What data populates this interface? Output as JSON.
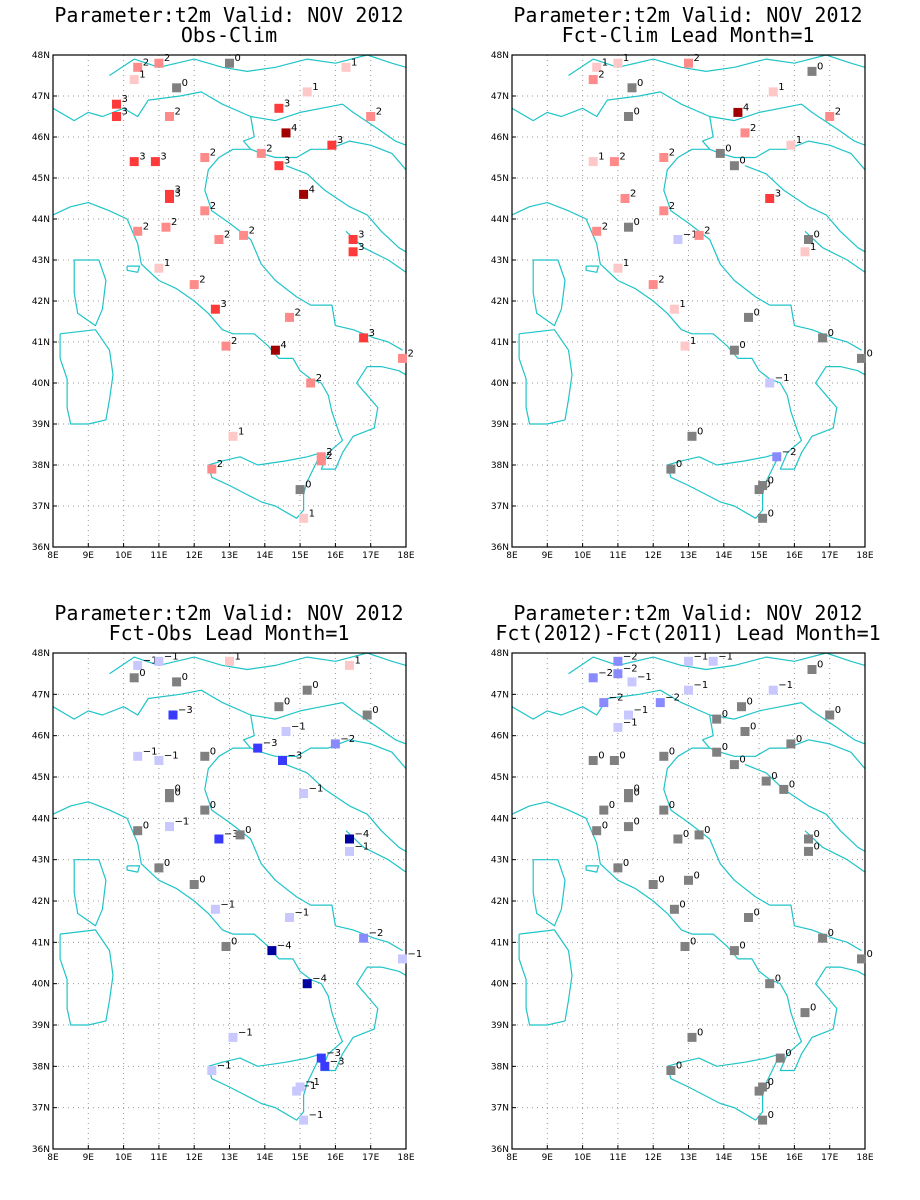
{
  "lat_ticks": [
    "48N",
    "47N",
    "46N",
    "45N",
    "44N",
    "43N",
    "42N",
    "41N",
    "40N",
    "39N",
    "38N",
    "37N",
    "36N"
  ],
  "lon_ticks": [
    "8E",
    "9E",
    "10E",
    "11E",
    "12E",
    "13E",
    "14E",
    "15E",
    "16E",
    "17E",
    "18E"
  ],
  "colors": {
    "coast": "#1fc4c8",
    "pos": {
      "1": "#ffc8c8",
      "2": "#ff8a8a",
      "3": "#ff3a3a",
      "4": "#a00000"
    },
    "neg": {
      "-1": "#c8c8ff",
      "-2": "#8a8aff",
      "-3": "#3a3aff",
      "-4": "#0000a0"
    },
    "zero": "#808080"
  },
  "panels": [
    {
      "title_line1": "Parameter:t2m Valid: NOV 2012",
      "title_line2": "Obs-Clim",
      "points": [
        [
          10.4,
          47.7,
          2
        ],
        [
          11.0,
          47.8,
          2
        ],
        [
          13.0,
          47.8,
          0
        ],
        [
          16.3,
          47.7,
          1
        ],
        [
          10.3,
          47.4,
          1
        ],
        [
          11.5,
          47.2,
          0
        ],
        [
          9.8,
          46.8,
          3
        ],
        [
          9.8,
          46.5,
          3
        ],
        [
          11.3,
          46.5,
          2
        ],
        [
          14.4,
          46.7,
          3
        ],
        [
          15.2,
          47.1,
          1
        ],
        [
          17.0,
          46.5,
          2
        ],
        [
          14.6,
          46.1,
          4
        ],
        [
          15.9,
          45.8,
          3
        ],
        [
          10.3,
          45.4,
          3
        ],
        [
          10.9,
          45.4,
          3
        ],
        [
          12.3,
          45.5,
          2
        ],
        [
          13.9,
          45.6,
          2
        ],
        [
          14.4,
          45.3,
          3
        ],
        [
          11.3,
          44.5,
          3
        ],
        [
          11.3,
          44.6,
          3
        ],
        [
          15.1,
          44.6,
          4
        ],
        [
          12.3,
          44.2,
          2
        ],
        [
          11.2,
          43.8,
          2
        ],
        [
          10.4,
          43.7,
          2
        ],
        [
          12.7,
          43.5,
          2
        ],
        [
          13.4,
          43.6,
          2
        ],
        [
          16.5,
          43.5,
          3
        ],
        [
          16.5,
          43.2,
          3
        ],
        [
          11.0,
          42.8,
          1
        ],
        [
          12.0,
          42.4,
          2
        ],
        [
          12.6,
          41.8,
          3
        ],
        [
          14.7,
          41.6,
          2
        ],
        [
          16.8,
          41.1,
          3
        ],
        [
          12.9,
          40.9,
          2
        ],
        [
          14.3,
          40.8,
          4
        ],
        [
          17.9,
          40.6,
          2
        ],
        [
          15.3,
          40.0,
          2
        ],
        [
          13.1,
          38.7,
          1
        ],
        [
          12.5,
          37.9,
          2
        ],
        [
          15.6,
          38.2,
          2
        ],
        [
          15.6,
          38.1,
          2
        ],
        [
          15.0,
          37.4,
          0
        ],
        [
          15.1,
          36.7,
          1
        ]
      ]
    },
    {
      "title_line1": "Parameter:t2m Valid: NOV 2012",
      "title_line2": "Fct-Clim Lead Month=1",
      "points": [
        [
          10.4,
          47.7,
          1
        ],
        [
          11.0,
          47.8,
          1
        ],
        [
          13.0,
          47.8,
          2
        ],
        [
          16.5,
          47.6,
          0
        ],
        [
          10.3,
          47.4,
          2
        ],
        [
          11.4,
          47.2,
          0
        ],
        [
          15.4,
          47.1,
          1
        ],
        [
          14.4,
          46.6,
          4
        ],
        [
          11.3,
          46.5,
          0
        ],
        [
          17.0,
          46.5,
          2
        ],
        [
          14.6,
          46.1,
          2
        ],
        [
          15.9,
          45.8,
          1
        ],
        [
          13.9,
          45.6,
          0
        ],
        [
          14.3,
          45.3,
          0
        ],
        [
          10.3,
          45.4,
          1
        ],
        [
          10.9,
          45.4,
          2
        ],
        [
          12.3,
          45.5,
          2
        ],
        [
          11.2,
          44.5,
          2
        ],
        [
          15.3,
          44.5,
          3
        ],
        [
          12.3,
          44.2,
          2
        ],
        [
          10.4,
          43.7,
          2
        ],
        [
          11.3,
          43.8,
          0
        ],
        [
          12.7,
          43.5,
          -1
        ],
        [
          13.3,
          43.6,
          2
        ],
        [
          16.4,
          43.5,
          0
        ],
        [
          16.3,
          43.2,
          1
        ],
        [
          11.0,
          42.8,
          1
        ],
        [
          12.0,
          42.4,
          2
        ],
        [
          12.6,
          41.8,
          1
        ],
        [
          14.7,
          41.6,
          0
        ],
        [
          16.8,
          41.1,
          0
        ],
        [
          12.9,
          40.9,
          1
        ],
        [
          14.3,
          40.8,
          0
        ],
        [
          17.9,
          40.6,
          0
        ],
        [
          15.3,
          40.0,
          -1
        ],
        [
          13.1,
          38.7,
          0
        ],
        [
          12.5,
          37.9,
          0
        ],
        [
          15.5,
          38.2,
          -2
        ],
        [
          15.0,
          37.4,
          0
        ],
        [
          15.1,
          37.5,
          0
        ],
        [
          15.1,
          36.7,
          0
        ]
      ]
    },
    {
      "title_line1": "Parameter:t2m Valid: NOV 2012",
      "title_line2": "Fct-Obs Lead Month=1",
      "points": [
        [
          10.4,
          47.7,
          -1
        ],
        [
          11.0,
          47.8,
          -1
        ],
        [
          13.0,
          47.8,
          1
        ],
        [
          16.4,
          47.7,
          1
        ],
        [
          10.3,
          47.4,
          0
        ],
        [
          11.5,
          47.3,
          0
        ],
        [
          11.4,
          46.5,
          -3
        ],
        [
          14.4,
          46.7,
          0
        ],
        [
          15.2,
          47.1,
          0
        ],
        [
          16.9,
          46.5,
          0
        ],
        [
          14.6,
          46.1,
          -1
        ],
        [
          13.8,
          45.7,
          -3
        ],
        [
          16.0,
          45.8,
          -2
        ],
        [
          14.5,
          45.4,
          -3
        ],
        [
          10.4,
          45.5,
          -1
        ],
        [
          11.0,
          45.4,
          -1
        ],
        [
          12.3,
          45.5,
          0
        ],
        [
          11.3,
          44.5,
          0
        ],
        [
          11.3,
          44.6,
          0
        ],
        [
          15.1,
          44.6,
          -1
        ],
        [
          12.3,
          44.2,
          0
        ],
        [
          11.3,
          43.8,
          -1
        ],
        [
          10.4,
          43.7,
          0
        ],
        [
          12.7,
          43.5,
          -3
        ],
        [
          13.3,
          43.6,
          0
        ],
        [
          16.4,
          43.5,
          -4
        ],
        [
          16.4,
          43.2,
          -1
        ],
        [
          11.0,
          42.8,
          0
        ],
        [
          12.0,
          42.4,
          0
        ],
        [
          12.6,
          41.8,
          -1
        ],
        [
          14.7,
          41.6,
          -1
        ],
        [
          16.8,
          41.1,
          -2
        ],
        [
          12.9,
          40.9,
          0
        ],
        [
          14.2,
          40.8,
          -4
        ],
        [
          17.9,
          40.6,
          -1
        ],
        [
          15.2,
          40.0,
          -4
        ],
        [
          13.1,
          38.7,
          -1
        ],
        [
          12.5,
          37.9,
          -1
        ],
        [
          15.6,
          38.2,
          -3
        ],
        [
          15.7,
          38.0,
          -3
        ],
        [
          14.9,
          37.4,
          -1
        ],
        [
          15.0,
          37.5,
          -1
        ],
        [
          15.1,
          36.7,
          -1
        ]
      ]
    },
    {
      "title_line1": "Parameter:t2m Valid: NOV 2012",
      "title_line2": "Fct(2012)-Fct(2011) Lead Month=1",
      "points": [
        [
          10.3,
          47.4,
          -2
        ],
        [
          11.0,
          47.8,
          -2
        ],
        [
          13.0,
          47.8,
          -1
        ],
        [
          13.7,
          47.8,
          -1
        ],
        [
          16.5,
          47.6,
          0
        ],
        [
          11.0,
          47.5,
          -2
        ],
        [
          11.4,
          47.3,
          -1
        ],
        [
          10.6,
          46.8,
          -2
        ],
        [
          12.2,
          46.8,
          -2
        ],
        [
          13.0,
          47.1,
          -1
        ],
        [
          15.4,
          47.1,
          -1
        ],
        [
          11.3,
          46.5,
          -1
        ],
        [
          11.0,
          46.2,
          -1
        ],
        [
          13.8,
          46.4,
          0
        ],
        [
          14.5,
          46.7,
          0
        ],
        [
          14.6,
          46.1,
          0
        ],
        [
          17.0,
          46.5,
          0
        ],
        [
          15.9,
          45.8,
          0
        ],
        [
          13.8,
          45.6,
          0
        ],
        [
          14.3,
          45.3,
          0
        ],
        [
          10.3,
          45.4,
          0
        ],
        [
          10.9,
          45.4,
          0
        ],
        [
          12.3,
          45.5,
          0
        ],
        [
          15.2,
          44.9,
          0
        ],
        [
          11.3,
          44.5,
          0
        ],
        [
          11.3,
          44.6,
          0
        ],
        [
          10.6,
          44.2,
          0
        ],
        [
          12.3,
          44.2,
          0
        ],
        [
          15.7,
          44.7,
          0
        ],
        [
          11.3,
          43.8,
          0
        ],
        [
          10.4,
          43.7,
          0
        ],
        [
          12.7,
          43.5,
          0
        ],
        [
          13.3,
          43.6,
          0
        ],
        [
          16.4,
          43.5,
          0
        ],
        [
          16.4,
          43.2,
          0
        ],
        [
          11.0,
          42.8,
          0
        ],
        [
          12.0,
          42.4,
          0
        ],
        [
          13.0,
          42.5,
          0
        ],
        [
          12.6,
          41.8,
          0
        ],
        [
          14.7,
          41.6,
          0
        ],
        [
          16.8,
          41.1,
          0
        ],
        [
          12.9,
          40.9,
          0
        ],
        [
          14.3,
          40.8,
          0
        ],
        [
          17.9,
          40.6,
          0
        ],
        [
          15.3,
          40.0,
          0
        ],
        [
          16.3,
          39.3,
          0
        ],
        [
          13.1,
          38.7,
          0
        ],
        [
          12.5,
          37.9,
          0
        ],
        [
          15.6,
          38.2,
          0
        ],
        [
          15.0,
          37.4,
          0
        ],
        [
          15.1,
          37.5,
          0
        ],
        [
          15.1,
          36.7,
          0
        ]
      ]
    }
  ]
}
